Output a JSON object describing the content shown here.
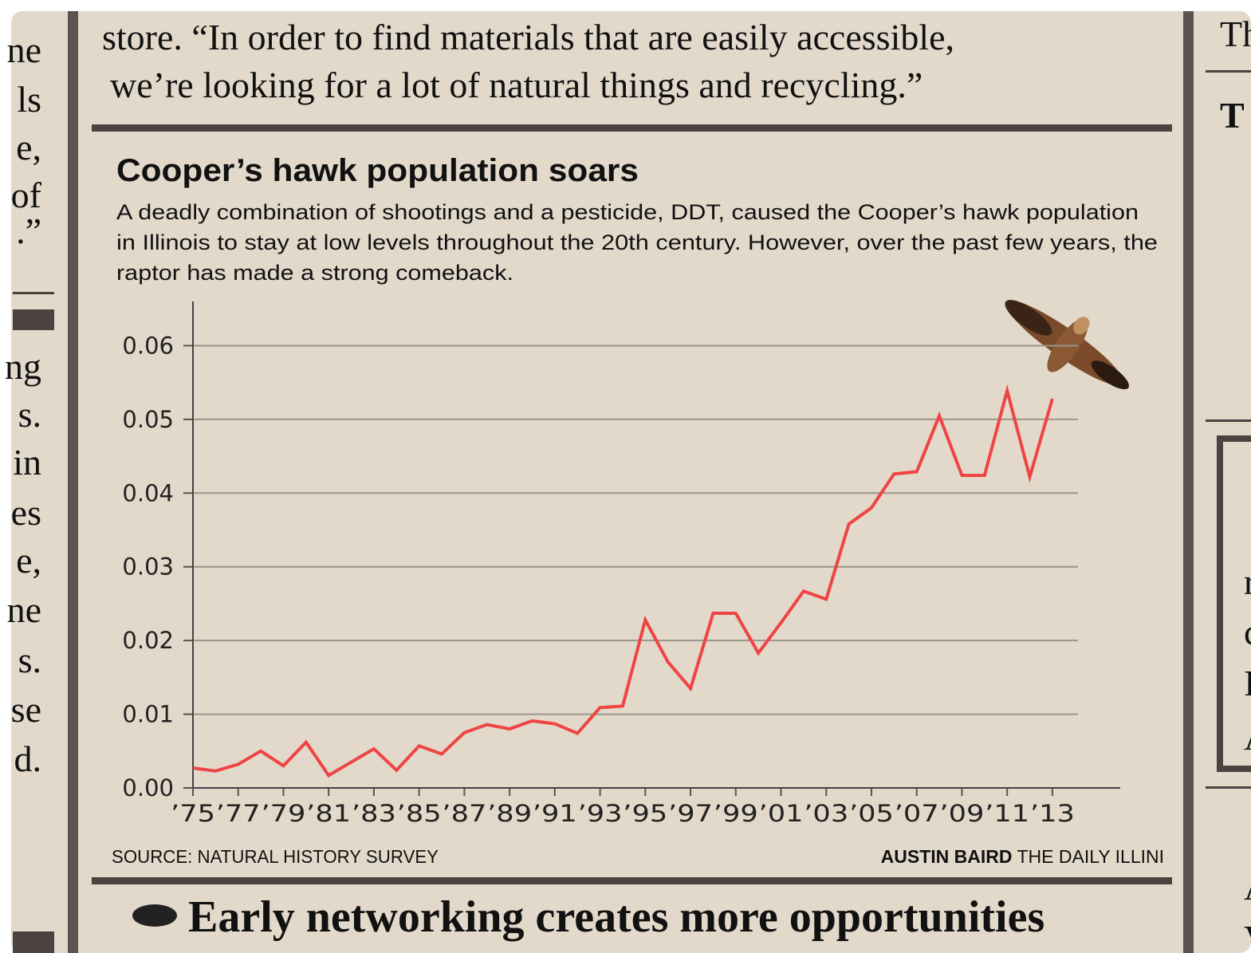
{
  "article_top": [
    "store. “In order to find materials that are easily accessible,",
    "we’re looking for a lot of natural things and recycling.”"
  ],
  "left_column": [
    "ne",
    "ls",
    "e,",
    "of",
    ".”",
    "ng",
    "s.",
    "in",
    "es",
    "e,",
    "ne",
    "s.",
    "se",
    "d."
  ],
  "right_column": [
    "Th",
    "T",
    "r",
    "c",
    "I",
    "A",
    "A",
    "V"
  ],
  "chart_data": {
    "type": "line",
    "title": "Cooper’s hawk population soars",
    "subtitle": [
      "A deadly combination of shootings and a pesticide, DDT, caused the Cooper’s hawk population",
      "in Illinois to stay at low levels throughout the 20th century. However, over the past few years, the",
      "raptor has made a strong comeback."
    ],
    "x": [
      1975,
      1976,
      1977,
      1978,
      1979,
      1980,
      1981,
      1982,
      1983,
      1984,
      1985,
      1986,
      1987,
      1988,
      1989,
      1990,
      1991,
      1992,
      1993,
      1994,
      1995,
      1996,
      1997,
      1998,
      1999,
      2000,
      2001,
      2002,
      2003,
      2004,
      2005,
      2006,
      2007,
      2008,
      2009,
      2010,
      2011,
      2012,
      2013
    ],
    "series": [
      {
        "color": "#f04444",
        "values": [
          0.0027,
          0.0023,
          0.0032,
          0.005,
          0.003,
          0.0062,
          0.0017,
          0.0035,
          0.0053,
          0.0024,
          0.0057,
          0.0046,
          0.0075,
          0.0086,
          0.008,
          0.0091,
          0.0087,
          0.0074,
          0.0109,
          0.0111,
          0.0228,
          0.0171,
          0.0135,
          0.0237,
          0.0237,
          0.0183,
          0.0224,
          0.0267,
          0.0256,
          0.0358,
          0.038,
          0.0426,
          0.0429,
          0.0505,
          0.0424,
          0.0424,
          0.0539,
          0.0422,
          0.0528
        ]
      }
    ],
    "xlim": [
      1975,
      2016
    ],
    "xticks": [
      {
        "value": 1975,
        "label": "’75"
      },
      {
        "value": 1977,
        "label": "’77"
      },
      {
        "value": 1979,
        "label": "’79"
      },
      {
        "value": 1981,
        "label": "’81"
      },
      {
        "value": 1983,
        "label": "’83"
      },
      {
        "value": 1985,
        "label": "’85"
      },
      {
        "value": 1987,
        "label": "’87"
      },
      {
        "value": 1989,
        "label": "’89"
      },
      {
        "value": 1991,
        "label": "’91"
      },
      {
        "value": 1993,
        "label": "’93"
      },
      {
        "value": 1995,
        "label": "’95"
      },
      {
        "value": 1997,
        "label": "’97"
      },
      {
        "value": 1999,
        "label": "’99"
      },
      {
        "value": 2001,
        "label": "’01"
      },
      {
        "value": 2003,
        "label": "’03"
      },
      {
        "value": 2005,
        "label": "’05"
      },
      {
        "value": 2007,
        "label": "’07"
      },
      {
        "value": 2009,
        "label": "’09"
      },
      {
        "value": 2011,
        "label": "’11"
      },
      {
        "value": 2013,
        "label": "’13"
      }
    ],
    "ylim": [
      0,
      0.066
    ],
    "yticks": [
      {
        "value": 0,
        "label": "0.00"
      },
      0.01,
      0.02,
      0.03,
      0.04,
      0.05,
      0.06
    ],
    "grid": true,
    "source": "SOURCE: NATURAL HISTORY SURVEY",
    "credit_name": "AUSTIN BAIRD",
    "credit_org": "THE DAILY ILLINI"
  },
  "next_headline": "Early networking creates more opportunities"
}
